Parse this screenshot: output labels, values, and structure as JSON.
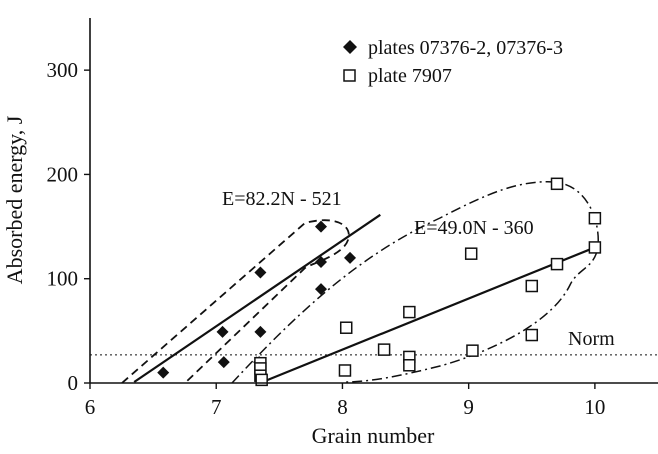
{
  "chart_data": {
    "type": "scatter",
    "title": "",
    "xlabel": "Grain number",
    "ylabel": "Absorbed energy, J",
    "xlim": [
      6,
      10.5
    ],
    "ylim": [
      0,
      350
    ],
    "xticks": [
      6,
      7,
      8,
      9,
      10
    ],
    "yticks": [
      0,
      100,
      200,
      300
    ],
    "grid": false,
    "legend_position": "top-right",
    "series": [
      {
        "name": "plates 07376-2, 07376-3",
        "marker": "filled-diamond",
        "color": "#111111",
        "points": [
          [
            6.58,
            10
          ],
          [
            7.05,
            49
          ],
          [
            7.06,
            20
          ],
          [
            7.35,
            106
          ],
          [
            7.35,
            49
          ],
          [
            7.34,
            20
          ],
          [
            7.83,
            150
          ],
          [
            7.83,
            116
          ],
          [
            7.83,
            90
          ],
          [
            8.06,
            120
          ]
        ],
        "fit": {
          "label": "E=82.2N - 521",
          "slope": 82.2,
          "intercept": -521,
          "x_range": [
            6.35,
            8.3
          ]
        }
      },
      {
        "name": "plate 7907",
        "marker": "open-square",
        "color": "#111111",
        "points": [
          [
            7.35,
            19
          ],
          [
            7.35,
            14
          ],
          [
            7.35,
            7
          ],
          [
            7.36,
            3
          ],
          [
            8.02,
            12
          ],
          [
            8.03,
            53
          ],
          [
            8.33,
            32
          ],
          [
            8.53,
            68
          ],
          [
            8.53,
            25
          ],
          [
            8.53,
            17
          ],
          [
            9.02,
            124
          ],
          [
            9.03,
            31
          ],
          [
            9.5,
            93
          ],
          [
            9.5,
            46
          ],
          [
            9.7,
            191
          ],
          [
            9.7,
            114
          ],
          [
            10.0,
            158
          ],
          [
            10.0,
            130
          ]
        ],
        "fit": {
          "label": "E=49.0N - 360",
          "slope": 49.0,
          "intercept": -360,
          "x_range": [
            7.35,
            10.0
          ]
        }
      }
    ],
    "reference_lines": [
      {
        "label": "Norm",
        "y": 27,
        "style": "dotted"
      }
    ],
    "annotations": [
      {
        "text": "E=82.2N - 521"
      },
      {
        "text": "E=49.0N - 360"
      },
      {
        "text": "Norm"
      }
    ]
  }
}
